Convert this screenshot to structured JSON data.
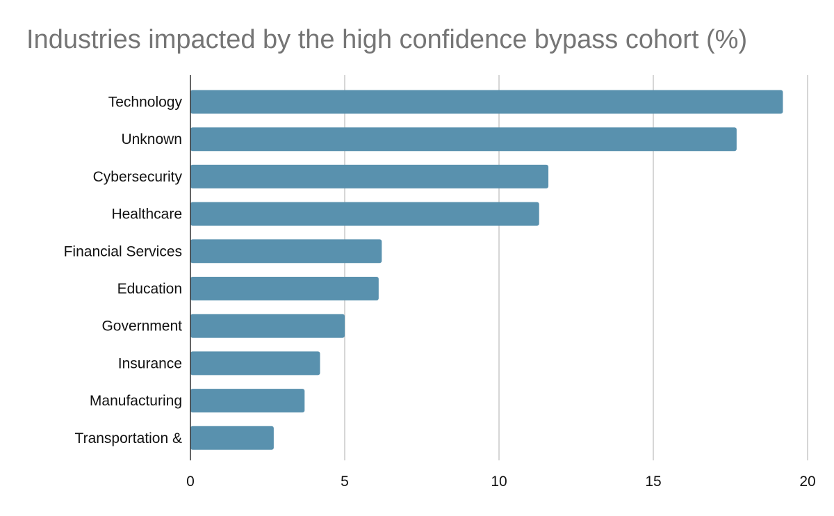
{
  "chart_data": {
    "type": "bar",
    "orientation": "horizontal",
    "title": "Industries impacted by the high confidence bypass cohort (%)",
    "xlabel": "",
    "ylabel": "",
    "categories": [
      "Technology",
      "Unknown",
      "Cybersecurity",
      "Healthcare",
      "Financial Services",
      "Education",
      "Government",
      "Insurance",
      "Manufacturing",
      "Transportation &"
    ],
    "values": [
      19.2,
      17.7,
      11.6,
      11.3,
      6.2,
      6.1,
      5.0,
      4.2,
      3.7,
      2.7
    ],
    "xlim": [
      0,
      20
    ],
    "xticks": [
      0,
      5,
      10,
      15,
      20
    ],
    "grid": true,
    "bar_color": "#5991ae"
  }
}
